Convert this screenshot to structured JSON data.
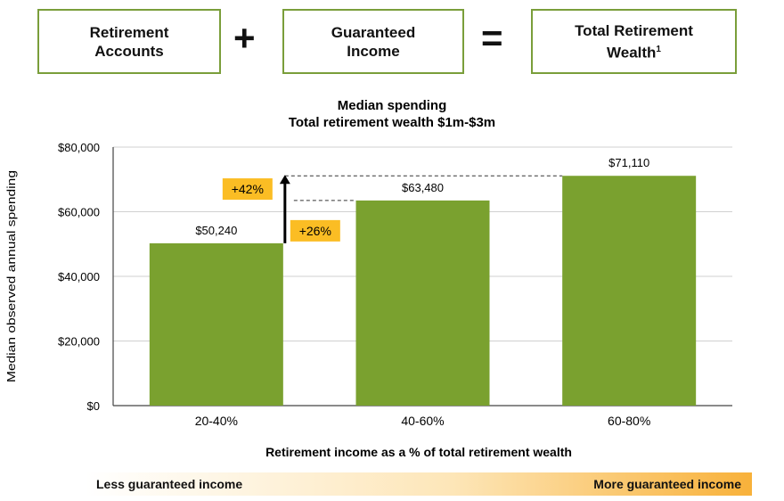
{
  "equation": {
    "box1": "Retirement\nAccounts",
    "op1": "+",
    "box2": "Guaranteed\nIncome",
    "op2": "=",
    "box3_main": "Total Retirement\nWealth",
    "box3_sup": "1"
  },
  "chart_data": {
    "type": "bar",
    "title": "Median spending",
    "subtitle": "Total retirement wealth $1m-$3m",
    "xlabel": "Retirement income as a % of total retirement wealth",
    "ylabel": "Median observed annual spending",
    "categories": [
      "20-40%",
      "40-60%",
      "60-80%"
    ],
    "values": [
      50240,
      63480,
      71110
    ],
    "value_labels": [
      "$50,240",
      "$63,480",
      "$71,110"
    ],
    "ylim": [
      0,
      80000
    ],
    "yticks": [
      0,
      20000,
      40000,
      60000,
      80000
    ],
    "ytick_labels": [
      "$0",
      "$20,000",
      "$40,000",
      "$60,000",
      "$80,000"
    ],
    "grid": true,
    "bar_color": "#7aa12f",
    "annotations": [
      {
        "label": "+42%",
        "from_value": 50240,
        "to_value": 71110
      },
      {
        "label": "+26%",
        "from_value": 50240,
        "to_value": 63480
      }
    ],
    "annotation_color": "#fbbd24"
  },
  "scale_bar": {
    "left_label": "Less guaranteed income",
    "right_label": "More guaranteed income"
  }
}
